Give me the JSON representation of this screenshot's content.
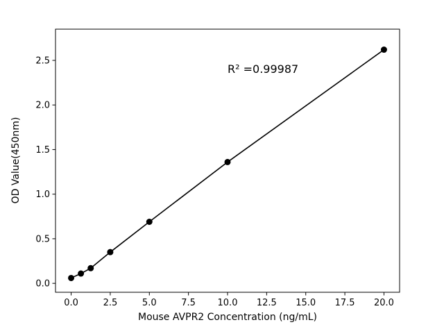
{
  "figure": {
    "background": "#ffffff",
    "foreground": "#000000"
  },
  "chart_data": {
    "type": "scatter",
    "x": [
      0,
      0.625,
      1.25,
      2.5,
      5,
      10,
      20
    ],
    "y": [
      0.06,
      0.11,
      0.17,
      0.35,
      0.69,
      1.36,
      2.62
    ],
    "title": "",
    "xlabel": "Mouse AVPR2 Concentration (ng/mL)",
    "ylabel": "OD Value(450nm)",
    "xlim": [
      -1,
      21
    ],
    "ylim": [
      -0.1,
      2.85
    ],
    "xticks": [
      0.0,
      2.5,
      5.0,
      7.5,
      10.0,
      12.5,
      15.0,
      17.5,
      20.0
    ],
    "xtick_labels": [
      "0.0",
      "2.5",
      "5.0",
      "7.5",
      "10.0",
      "12.5",
      "15.0",
      "17.5",
      "20.0"
    ],
    "yticks": [
      0.0,
      0.5,
      1.0,
      1.5,
      2.0,
      2.5
    ],
    "ytick_labels": [
      "0.0",
      "0.5",
      "1.0",
      "1.5",
      "2.0",
      "2.5"
    ],
    "grid": false,
    "legend": "none",
    "line_color": "#000000",
    "marker_color": "#000000",
    "annotation": {
      "text": "R² =0.99987",
      "x": 10.0,
      "y": 2.36
    }
  }
}
